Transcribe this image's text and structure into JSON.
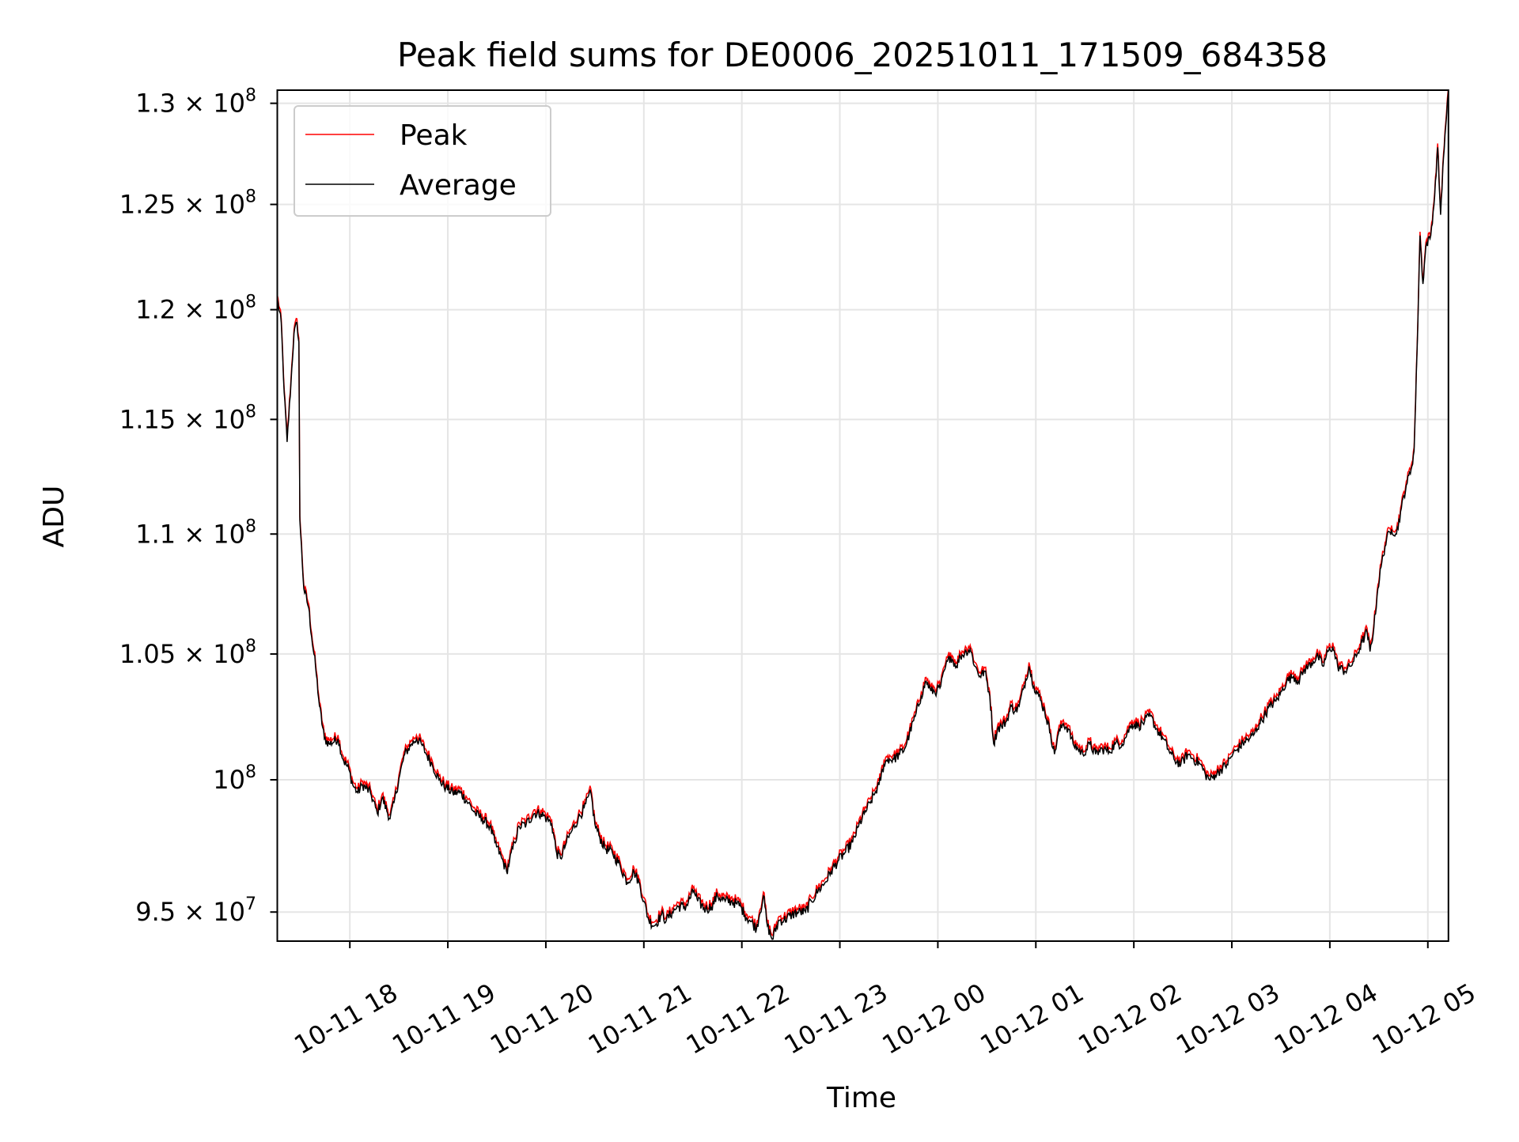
{
  "chart_data": {
    "type": "line",
    "title": "Peak field sums for DE0006_20251011_171509_684358",
    "xlabel": "Time",
    "ylabel": "ADU",
    "yscale": "log",
    "ylim": [
      93920000,
      130670000
    ],
    "xlim_hours": [
      17.2525,
      29.2125
    ],
    "x_unit": "hours since 10-11 00:00",
    "y_multiplier": 100000000,
    "grid": true,
    "legend_position": "top-left",
    "legend": [
      "Peak",
      "Average"
    ],
    "colors": {
      "Peak": "#ff0000",
      "Average": "#000000",
      "grid": "#e5e5e5"
    },
    "peak_to_average_ratio": 1.0015,
    "yticks": [
      {
        "value": 95000000,
        "mantissa": "9.5",
        "exp": "7"
      },
      {
        "value": 100000000,
        "mantissa": "",
        "exp": "8"
      },
      {
        "value": 105000000,
        "mantissa": "1.05",
        "exp": "8"
      },
      {
        "value": 110000000,
        "mantissa": "1.1",
        "exp": "8"
      },
      {
        "value": 115000000,
        "mantissa": "1.15",
        "exp": "8"
      },
      {
        "value": 120000000,
        "mantissa": "1.2",
        "exp": "8"
      },
      {
        "value": 125000000,
        "mantissa": "1.25",
        "exp": "8"
      },
      {
        "value": 130000000,
        "mantissa": "1.3",
        "exp": "8"
      }
    ],
    "xticks": [
      {
        "hour": 18,
        "label": "10-11 18"
      },
      {
        "hour": 19,
        "label": "10-11 19"
      },
      {
        "hour": 20,
        "label": "10-11 20"
      },
      {
        "hour": 21,
        "label": "10-11 21"
      },
      {
        "hour": 22,
        "label": "10-11 22"
      },
      {
        "hour": 23,
        "label": "10-11 23"
      },
      {
        "hour": 24,
        "label": "10-12 00"
      },
      {
        "hour": 25,
        "label": "10-12 01"
      },
      {
        "hour": 26,
        "label": "10-12 02"
      },
      {
        "hour": 27,
        "label": "10-12 03"
      },
      {
        "hour": 28,
        "label": "10-12 04"
      },
      {
        "hour": 29,
        "label": "10-12 05"
      }
    ],
    "average_series": [
      [
        17.26,
        1.205
      ],
      [
        17.3,
        1.194
      ],
      [
        17.33,
        1.162
      ],
      [
        17.36,
        1.14
      ],
      [
        17.4,
        1.167
      ],
      [
        17.43,
        1.189
      ],
      [
        17.46,
        1.194
      ],
      [
        17.48,
        1.185
      ],
      [
        17.49,
        1.106
      ],
      [
        17.53,
        1.077
      ],
      [
        17.58,
        1.069
      ],
      [
        17.61,
        1.057
      ],
      [
        17.65,
        1.045
      ],
      [
        17.69,
        1.029
      ],
      [
        17.74,
        1.016
      ],
      [
        17.79,
        1.014
      ],
      [
        17.88,
        1.016
      ],
      [
        17.93,
        1.008
      ],
      [
        17.99,
        1.004
      ],
      [
        18.03,
        0.998
      ],
      [
        18.08,
        0.995
      ],
      [
        18.13,
        0.998
      ],
      [
        18.21,
        0.995
      ],
      [
        18.28,
        0.987
      ],
      [
        18.33,
        0.993
      ],
      [
        18.41,
        0.985
      ],
      [
        18.45,
        0.991
      ],
      [
        18.51,
        1.002
      ],
      [
        18.56,
        1.01
      ],
      [
        18.63,
        1.014
      ],
      [
        18.68,
        1.016
      ],
      [
        18.73,
        1.014
      ],
      [
        18.78,
        1.01
      ],
      [
        18.84,
        1.006
      ],
      [
        18.91,
        1.0
      ],
      [
        18.98,
        0.997
      ],
      [
        19.05,
        0.995
      ],
      [
        19.13,
        0.995
      ],
      [
        19.21,
        0.991
      ],
      [
        19.28,
        0.987
      ],
      [
        19.35,
        0.985
      ],
      [
        19.43,
        0.982
      ],
      [
        19.48,
        0.976
      ],
      [
        19.55,
        0.97
      ],
      [
        19.6,
        0.965
      ],
      [
        19.63,
        0.969
      ],
      [
        19.68,
        0.976
      ],
      [
        19.73,
        0.982
      ],
      [
        19.8,
        0.983
      ],
      [
        19.88,
        0.987
      ],
      [
        19.95,
        0.987
      ],
      [
        20.01,
        0.985
      ],
      [
        20.06,
        0.983
      ],
      [
        20.11,
        0.972
      ],
      [
        20.15,
        0.97
      ],
      [
        20.21,
        0.976
      ],
      [
        20.26,
        0.98
      ],
      [
        20.33,
        0.985
      ],
      [
        20.39,
        0.989
      ],
      [
        20.46,
        0.995
      ],
      [
        20.5,
        0.983
      ],
      [
        20.55,
        0.978
      ],
      [
        20.6,
        0.974
      ],
      [
        20.68,
        0.972
      ],
      [
        20.76,
        0.967
      ],
      [
        20.83,
        0.961
      ],
      [
        20.9,
        0.965
      ],
      [
        20.95,
        0.961
      ],
      [
        21.0,
        0.954
      ],
      [
        21.05,
        0.947
      ],
      [
        21.11,
        0.945
      ],
      [
        21.18,
        0.949
      ],
      [
        21.23,
        0.947
      ],
      [
        21.29,
        0.95
      ],
      [
        21.35,
        0.952
      ],
      [
        21.43,
        0.952
      ],
      [
        21.51,
        0.958
      ],
      [
        21.55,
        0.954
      ],
      [
        21.63,
        0.951
      ],
      [
        21.69,
        0.952
      ],
      [
        21.75,
        0.956
      ],
      [
        21.83,
        0.954
      ],
      [
        21.89,
        0.954
      ],
      [
        21.95,
        0.953
      ],
      [
        21.99,
        0.952
      ],
      [
        22.03,
        0.949
      ],
      [
        22.08,
        0.947
      ],
      [
        22.15,
        0.944
      ],
      [
        22.18,
        0.949
      ],
      [
        22.22,
        0.956
      ],
      [
        22.26,
        0.945
      ],
      [
        22.31,
        0.94
      ],
      [
        22.38,
        0.947
      ],
      [
        22.43,
        0.947
      ],
      [
        22.51,
        0.949
      ],
      [
        22.58,
        0.95
      ],
      [
        22.65,
        0.95
      ],
      [
        22.71,
        0.954
      ],
      [
        22.78,
        0.958
      ],
      [
        22.85,
        0.961
      ],
      [
        22.91,
        0.965
      ],
      [
        22.98,
        0.969
      ],
      [
        23.05,
        0.972
      ],
      [
        23.13,
        0.976
      ],
      [
        23.19,
        0.982
      ],
      [
        23.25,
        0.987
      ],
      [
        23.31,
        0.991
      ],
      [
        23.36,
        0.995
      ],
      [
        23.4,
        0.998
      ],
      [
        23.45,
        1.006
      ],
      [
        23.49,
        1.008
      ],
      [
        23.55,
        1.008
      ],
      [
        23.61,
        1.01
      ],
      [
        23.66,
        1.012
      ],
      [
        23.71,
        1.018
      ],
      [
        23.77,
        1.025
      ],
      [
        23.83,
        1.033
      ],
      [
        23.88,
        1.039
      ],
      [
        23.93,
        1.035
      ],
      [
        23.99,
        1.035
      ],
      [
        24.03,
        1.037
      ],
      [
        24.08,
        1.045
      ],
      [
        24.13,
        1.049
      ],
      [
        24.19,
        1.045
      ],
      [
        24.23,
        1.049
      ],
      [
        24.29,
        1.051
      ],
      [
        24.33,
        1.052
      ],
      [
        24.38,
        1.045
      ],
      [
        24.43,
        1.041
      ],
      [
        24.48,
        1.043
      ],
      [
        24.53,
        1.033
      ],
      [
        24.57,
        1.014
      ],
      [
        24.61,
        1.02
      ],
      [
        24.65,
        1.021
      ],
      [
        24.7,
        1.023
      ],
      [
        24.75,
        1.029
      ],
      [
        24.79,
        1.027
      ],
      [
        24.83,
        1.029
      ],
      [
        24.88,
        1.037
      ],
      [
        24.93,
        1.045
      ],
      [
        24.98,
        1.037
      ],
      [
        25.03,
        1.033
      ],
      [
        25.09,
        1.027
      ],
      [
        25.15,
        1.018
      ],
      [
        25.19,
        1.01
      ],
      [
        25.23,
        1.018
      ],
      [
        25.28,
        1.022
      ],
      [
        25.33,
        1.02
      ],
      [
        25.38,
        1.014
      ],
      [
        25.43,
        1.012
      ],
      [
        25.48,
        1.01
      ],
      [
        25.55,
        1.014
      ],
      [
        25.61,
        1.01
      ],
      [
        25.68,
        1.012
      ],
      [
        25.75,
        1.011
      ],
      [
        25.81,
        1.014
      ],
      [
        25.88,
        1.014
      ],
      [
        25.93,
        1.018
      ],
      [
        25.98,
        1.022
      ],
      [
        26.05,
        1.021
      ],
      [
        26.11,
        1.023
      ],
      [
        26.17,
        1.025
      ],
      [
        26.23,
        1.02
      ],
      [
        26.3,
        1.016
      ],
      [
        26.35,
        1.012
      ],
      [
        26.41,
        1.008
      ],
      [
        26.48,
        1.006
      ],
      [
        26.55,
        1.01
      ],
      [
        26.61,
        1.008
      ],
      [
        26.68,
        1.006
      ],
      [
        26.73,
        1.002
      ],
      [
        26.78,
        1.0
      ],
      [
        26.83,
        1.002
      ],
      [
        26.89,
        1.004
      ],
      [
        26.95,
        1.006
      ],
      [
        27.01,
        1.01
      ],
      [
        27.06,
        1.012
      ],
      [
        27.13,
        1.015
      ],
      [
        27.18,
        1.016
      ],
      [
        27.23,
        1.018
      ],
      [
        27.28,
        1.022
      ],
      [
        27.33,
        1.025
      ],
      [
        27.39,
        1.029
      ],
      [
        27.45,
        1.031
      ],
      [
        27.51,
        1.035
      ],
      [
        27.56,
        1.039
      ],
      [
        27.63,
        1.041
      ],
      [
        27.68,
        1.039
      ],
      [
        27.73,
        1.043
      ],
      [
        27.78,
        1.045
      ],
      [
        27.83,
        1.047
      ],
      [
        27.88,
        1.049
      ],
      [
        27.93,
        1.045
      ],
      [
        27.98,
        1.051
      ],
      [
        28.03,
        1.053
      ],
      [
        28.08,
        1.045
      ],
      [
        28.15,
        1.043
      ],
      [
        28.21,
        1.045
      ],
      [
        28.28,
        1.05
      ],
      [
        28.33,
        1.055
      ],
      [
        28.38,
        1.059
      ],
      [
        28.41,
        1.051
      ],
      [
        28.45,
        1.061
      ],
      [
        28.49,
        1.077
      ],
      [
        28.53,
        1.088
      ],
      [
        28.58,
        1.098
      ],
      [
        28.63,
        1.102
      ],
      [
        28.68,
        1.1
      ],
      [
        28.73,
        1.111
      ],
      [
        28.78,
        1.121
      ],
      [
        28.83,
        1.128
      ],
      [
        28.86,
        1.136
      ],
      [
        28.89,
        1.18
      ],
      [
        28.92,
        1.235
      ],
      [
        28.95,
        1.212
      ],
      [
        28.98,
        1.23
      ],
      [
        29.03,
        1.235
      ],
      [
        29.07,
        1.254
      ],
      [
        29.1,
        1.278
      ],
      [
        29.13,
        1.245
      ],
      [
        29.16,
        1.273
      ],
      [
        29.19,
        1.293
      ],
      [
        29.21,
        1.306
      ]
    ]
  }
}
